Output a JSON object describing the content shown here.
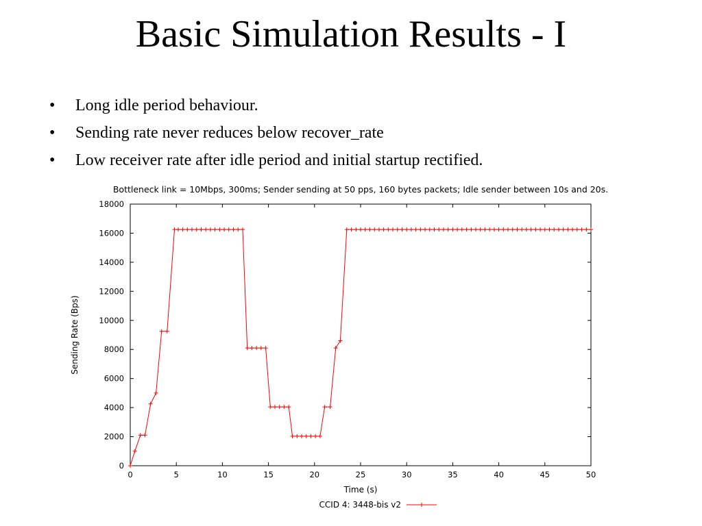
{
  "slide": {
    "title": "Basic Simulation Results - I",
    "bullet_symbol": "•",
    "bullets": [
      "Long idle period behaviour.",
      "Sending rate never reduces below recover_rate",
      "Low receiver rate after idle period and initial startup rectified."
    ]
  },
  "chart_data": {
    "type": "line",
    "title": "Bottleneck link = 10Mbps, 300ms; Sender sending at 50 pps, 160 bytes packets; Idle sender between 10s and 20s.",
    "xlabel": "Time (s)",
    "ylabel": "Sending Rate (Bps)",
    "xlim": [
      0,
      50
    ],
    "ylim": [
      0,
      18000
    ],
    "xticks": [
      0,
      5,
      10,
      15,
      20,
      25,
      30,
      35,
      40,
      45,
      50
    ],
    "yticks": [
      0,
      2000,
      4000,
      6000,
      8000,
      10000,
      12000,
      14000,
      16000,
      18000
    ],
    "grid": false,
    "legend_position": "bottom-center",
    "line_color": "#ff0000",
    "marker": "plus",
    "series": [
      {
        "name": "CCID 4: 3448-bis v2",
        "points": [
          [
            0,
            0
          ],
          [
            0.5,
            1000
          ],
          [
            1.1,
            2100
          ],
          [
            1.6,
            2100
          ],
          [
            2.2,
            4250
          ],
          [
            2.8,
            5000
          ],
          [
            3.4,
            9250
          ],
          [
            4.0,
            9250
          ],
          [
            4.8,
            16250
          ],
          [
            5.2,
            16250
          ],
          [
            5.7,
            16250
          ],
          [
            6.2,
            16250
          ],
          [
            6.7,
            16250
          ],
          [
            7.2,
            16250
          ],
          [
            7.7,
            16250
          ],
          [
            8.2,
            16250
          ],
          [
            8.7,
            16250
          ],
          [
            9.2,
            16250
          ],
          [
            9.7,
            16250
          ],
          [
            10.2,
            16250
          ],
          [
            10.7,
            16250
          ],
          [
            11.2,
            16250
          ],
          [
            11.7,
            16250
          ],
          [
            12.2,
            16250
          ],
          [
            12.7,
            8100
          ],
          [
            13.2,
            8100
          ],
          [
            13.7,
            8100
          ],
          [
            14.2,
            8100
          ],
          [
            14.7,
            8100
          ],
          [
            15.2,
            4050
          ],
          [
            15.7,
            4050
          ],
          [
            16.2,
            4050
          ],
          [
            16.7,
            4050
          ],
          [
            17.2,
            4050
          ],
          [
            17.6,
            2030
          ],
          [
            18.1,
            2030
          ],
          [
            18.6,
            2030
          ],
          [
            19.1,
            2030
          ],
          [
            19.6,
            2030
          ],
          [
            20.1,
            2030
          ],
          [
            20.6,
            2030
          ],
          [
            21.1,
            4050
          ],
          [
            21.7,
            4050
          ],
          [
            22.3,
            8100
          ],
          [
            22.8,
            8600
          ],
          [
            23.5,
            16250
          ],
          [
            24.0,
            16250
          ],
          [
            24.5,
            16250
          ],
          [
            25.0,
            16250
          ],
          [
            25.5,
            16250
          ],
          [
            26.0,
            16250
          ],
          [
            26.5,
            16250
          ],
          [
            27.0,
            16250
          ],
          [
            27.5,
            16250
          ],
          [
            28.0,
            16250
          ],
          [
            28.5,
            16250
          ],
          [
            29.0,
            16250
          ],
          [
            29.5,
            16250
          ],
          [
            30.0,
            16250
          ],
          [
            30.5,
            16250
          ],
          [
            31.0,
            16250
          ],
          [
            31.5,
            16250
          ],
          [
            32.0,
            16250
          ],
          [
            32.5,
            16250
          ],
          [
            33.0,
            16250
          ],
          [
            33.5,
            16250
          ],
          [
            34.0,
            16250
          ],
          [
            34.5,
            16250
          ],
          [
            35.0,
            16250
          ],
          [
            35.5,
            16250
          ],
          [
            36.0,
            16250
          ],
          [
            36.5,
            16250
          ],
          [
            37.0,
            16250
          ],
          [
            37.5,
            16250
          ],
          [
            38.0,
            16250
          ],
          [
            38.5,
            16250
          ],
          [
            39.0,
            16250
          ],
          [
            39.5,
            16250
          ],
          [
            40.0,
            16250
          ],
          [
            40.5,
            16250
          ],
          [
            41.0,
            16250
          ],
          [
            41.5,
            16250
          ],
          [
            42.0,
            16250
          ],
          [
            42.5,
            16250
          ],
          [
            43.0,
            16250
          ],
          [
            43.5,
            16250
          ],
          [
            44.0,
            16250
          ],
          [
            44.5,
            16250
          ],
          [
            45.0,
            16250
          ],
          [
            45.5,
            16250
          ],
          [
            46.0,
            16250
          ],
          [
            46.5,
            16250
          ],
          [
            47.0,
            16250
          ],
          [
            47.5,
            16250
          ],
          [
            48.0,
            16250
          ],
          [
            48.5,
            16250
          ],
          [
            49.0,
            16250
          ],
          [
            49.5,
            16250
          ],
          [
            50.0,
            16250
          ]
        ]
      }
    ]
  }
}
